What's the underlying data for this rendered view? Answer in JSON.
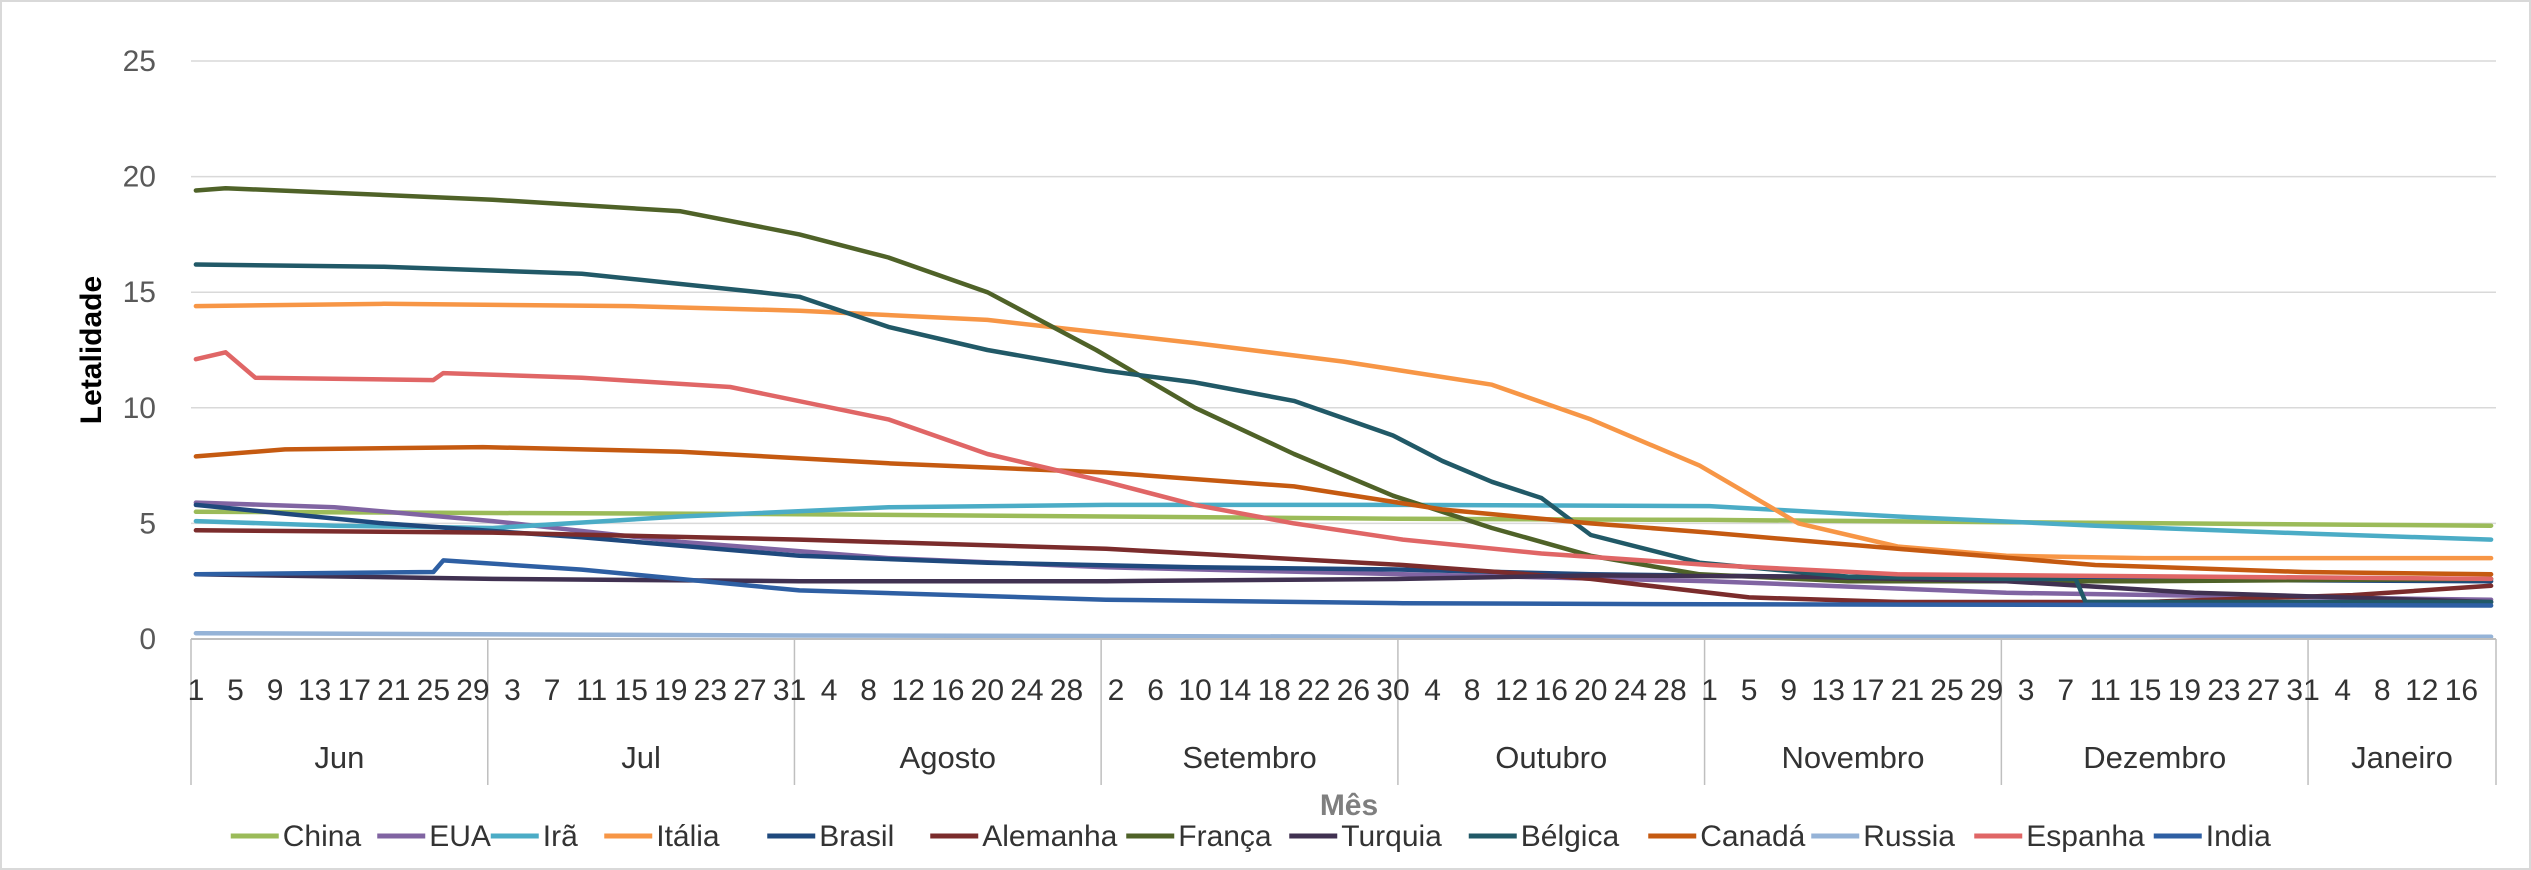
{
  "chart_data": {
    "type": "line",
    "title": "",
    "xlabel": "Mês",
    "ylabel": "Letalidade",
    "ylim": [
      0,
      25
    ],
    "yticks": [
      "0",
      "5",
      "10",
      "15",
      "20",
      "25"
    ],
    "grid": true,
    "legend_position": "bottom",
    "months": [
      {
        "name": "Jun",
        "days": 30
      },
      {
        "name": "Jul",
        "days": 31
      },
      {
        "name": "Agosto",
        "days": 31
      },
      {
        "name": "Setembro",
        "days": 30
      },
      {
        "name": "Outubro",
        "days": 31
      },
      {
        "name": "Novembro",
        "days": 30
      },
      {
        "name": "Dezembro",
        "days": 31
      },
      {
        "name": "Janeiro",
        "days": 19
      }
    ],
    "day_tick_labels": [
      [
        "1",
        "5",
        "9",
        "13",
        "17",
        "21",
        "25",
        "29"
      ],
      [
        "3",
        "7",
        "11",
        "15",
        "19",
        "23",
        "27",
        "31"
      ],
      [
        "4",
        "8",
        "12",
        "16",
        "20",
        "24",
        "28"
      ],
      [
        "2",
        "6",
        "10",
        "14",
        "18",
        "22",
        "26",
        "30"
      ],
      [
        "4",
        "8",
        "12",
        "16",
        "20",
        "24",
        "28"
      ],
      [
        "1",
        "5",
        "9",
        "13",
        "17",
        "21",
        "25",
        "29"
      ],
      [
        "3",
        "7",
        "11",
        "15",
        "19",
        "23",
        "27",
        "31"
      ],
      [
        "4",
        "8",
        "12",
        "16"
      ]
    ],
    "series": [
      {
        "name": "China",
        "color": "#9BBB59",
        "points": [
          [
            "2020-06-01",
            5.5
          ],
          [
            "2020-07-01",
            5.45
          ],
          [
            "2020-08-01",
            5.4
          ],
          [
            "2020-09-01",
            5.3
          ],
          [
            "2020-10-01",
            5.2
          ],
          [
            "2020-11-01",
            5.15
          ],
          [
            "2020-12-01",
            5.05
          ],
          [
            "2021-01-19",
            4.9
          ]
        ]
      },
      {
        "name": "EUA",
        "color": "#8064A2",
        "points": [
          [
            "2020-06-01",
            5.9
          ],
          [
            "2020-06-15",
            5.7
          ],
          [
            "2020-07-01",
            5.1
          ],
          [
            "2020-07-20",
            4.2
          ],
          [
            "2020-08-10",
            3.5
          ],
          [
            "2020-09-01",
            3.1
          ],
          [
            "2020-10-01",
            2.8
          ],
          [
            "2020-11-01",
            2.5
          ],
          [
            "2020-12-01",
            2.0
          ],
          [
            "2021-01-01",
            1.8
          ],
          [
            "2021-01-19",
            1.7
          ]
        ]
      },
      {
        "name": "Irã",
        "color": "#4BACC6",
        "points": [
          [
            "2020-06-01",
            5.1
          ],
          [
            "2020-06-15",
            4.9
          ],
          [
            "2020-07-01",
            4.8
          ],
          [
            "2020-07-20",
            5.3
          ],
          [
            "2020-08-10",
            5.7
          ],
          [
            "2020-09-01",
            5.8
          ],
          [
            "2020-10-01",
            5.8
          ],
          [
            "2020-11-01",
            5.75
          ],
          [
            "2020-11-20",
            5.3
          ],
          [
            "2020-12-10",
            4.9
          ],
          [
            "2021-01-01",
            4.55
          ],
          [
            "2021-01-19",
            4.3
          ]
        ]
      },
      {
        "name": "Itália",
        "color": "#F79646",
        "points": [
          [
            "2020-06-01",
            14.4
          ],
          [
            "2020-06-20",
            14.5
          ],
          [
            "2020-07-15",
            14.4
          ],
          [
            "2020-08-01",
            14.2
          ],
          [
            "2020-08-20",
            13.8
          ],
          [
            "2020-09-10",
            12.8
          ],
          [
            "2020-09-25",
            12.0
          ],
          [
            "2020-10-10",
            11.0
          ],
          [
            "2020-10-20",
            9.5
          ],
          [
            "2020-10-31",
            7.5
          ],
          [
            "2020-11-10",
            5.0
          ],
          [
            "2020-11-20",
            4.0
          ],
          [
            "2020-12-01",
            3.6
          ],
          [
            "2020-12-15",
            3.5
          ],
          [
            "2021-01-19",
            3.5
          ]
        ]
      },
      {
        "name": "Brasil",
        "color": "#1F497D",
        "points": [
          [
            "2020-06-01",
            5.8
          ],
          [
            "2020-06-20",
            5.0
          ],
          [
            "2020-07-10",
            4.4
          ],
          [
            "2020-08-01",
            3.6
          ],
          [
            "2020-08-20",
            3.3
          ],
          [
            "2020-09-10",
            3.1
          ],
          [
            "2020-10-01",
            3.0
          ],
          [
            "2020-10-20",
            2.8
          ],
          [
            "2020-11-10",
            2.7
          ],
          [
            "2020-12-01",
            2.6
          ],
          [
            "2021-01-19",
            2.5
          ]
        ]
      },
      {
        "name": "Alemanha",
        "color": "#7B2C2C",
        "points": [
          [
            "2020-06-01",
            4.7
          ],
          [
            "2020-07-01",
            4.6
          ],
          [
            "2020-08-01",
            4.3
          ],
          [
            "2020-09-01",
            3.9
          ],
          [
            "2020-10-01",
            3.2
          ],
          [
            "2020-10-20",
            2.6
          ],
          [
            "2020-11-05",
            1.8
          ],
          [
            "2020-11-20",
            1.6
          ],
          [
            "2020-12-15",
            1.6
          ],
          [
            "2021-01-05",
            1.9
          ],
          [
            "2021-01-19",
            2.3
          ]
        ]
      },
      {
        "name": "França",
        "color": "#4F6228",
        "points": [
          [
            "2020-06-01",
            19.4
          ],
          [
            "2020-06-04",
            19.5
          ],
          [
            "2020-07-01",
            19.0
          ],
          [
            "2020-07-20",
            18.5
          ],
          [
            "2020-08-01",
            17.5
          ],
          [
            "2020-08-10",
            16.5
          ],
          [
            "2020-08-20",
            15.0
          ],
          [
            "2020-08-31",
            12.5
          ],
          [
            "2020-09-10",
            10.0
          ],
          [
            "2020-09-20",
            8.0
          ],
          [
            "2020-09-30",
            6.2
          ],
          [
            "2020-10-10",
            4.8
          ],
          [
            "2020-10-20",
            3.6
          ],
          [
            "2020-10-31",
            2.8
          ],
          [
            "2020-11-15",
            2.5
          ],
          [
            "2020-12-15",
            2.5
          ],
          [
            "2021-01-19",
            2.6
          ]
        ]
      },
      {
        "name": "Turquia",
        "color": "#403151",
        "points": [
          [
            "2020-06-01",
            2.8
          ],
          [
            "2020-07-01",
            2.6
          ],
          [
            "2020-08-01",
            2.5
          ],
          [
            "2020-09-01",
            2.5
          ],
          [
            "2020-10-01",
            2.6
          ],
          [
            "2020-10-20",
            2.75
          ],
          [
            "2020-11-10",
            2.7
          ],
          [
            "2020-12-01",
            2.5
          ],
          [
            "2020-12-20",
            2.0
          ],
          [
            "2021-01-19",
            1.6
          ]
        ]
      },
      {
        "name": "Bélgica",
        "color": "#215967",
        "points": [
          [
            "2020-06-01",
            16.2
          ],
          [
            "2020-06-20",
            16.1
          ],
          [
            "2020-07-10",
            15.8
          ],
          [
            "2020-07-28",
            15.0
          ],
          [
            "2020-08-01",
            14.8
          ],
          [
            "2020-08-10",
            13.5
          ],
          [
            "2020-08-20",
            12.5
          ],
          [
            "2020-09-01",
            11.6
          ],
          [
            "2020-09-10",
            11.1
          ],
          [
            "2020-09-20",
            10.3
          ],
          [
            "2020-09-30",
            8.8
          ],
          [
            "2020-10-05",
            7.7
          ],
          [
            "2020-10-10",
            6.8
          ],
          [
            "2020-10-15",
            6.1
          ],
          [
            "2020-10-20",
            4.5
          ],
          [
            "2020-10-31",
            3.3
          ],
          [
            "2020-11-15",
            2.7
          ],
          [
            "2020-12-01",
            2.6
          ],
          [
            "2020-12-08",
            2.6
          ],
          [
            "2020-12-09",
            1.6
          ],
          [
            "2021-01-19",
            1.6
          ]
        ]
      },
      {
        "name": "Canadá",
        "color": "#C55A11",
        "points": [
          [
            "2020-06-01",
            7.9
          ],
          [
            "2020-06-10",
            8.2
          ],
          [
            "2020-06-30",
            8.3
          ],
          [
            "2020-07-20",
            8.1
          ],
          [
            "2020-08-10",
            7.6
          ],
          [
            "2020-09-01",
            7.2
          ],
          [
            "2020-09-20",
            6.6
          ],
          [
            "2020-10-05",
            5.6
          ],
          [
            "2020-10-20",
            5.0
          ],
          [
            "2020-11-01",
            4.6
          ],
          [
            "2020-11-20",
            3.9
          ],
          [
            "2020-12-10",
            3.2
          ],
          [
            "2020-12-31",
            2.9
          ],
          [
            "2021-01-19",
            2.8
          ]
        ]
      },
      {
        "name": "Russia",
        "color": "#95B3D7",
        "points": [
          [
            "2020-06-01",
            0.25
          ],
          [
            "2020-08-01",
            0.15
          ],
          [
            "2020-10-01",
            0.1
          ],
          [
            "2021-01-19",
            0.1
          ]
        ]
      },
      {
        "name": "Espanha",
        "color": "#E06666",
        "points": [
          [
            "2020-06-01",
            12.1
          ],
          [
            "2020-06-04",
            12.4
          ],
          [
            "2020-06-07",
            11.3
          ],
          [
            "2020-06-25",
            11.2
          ],
          [
            "2020-06-26",
            11.5
          ],
          [
            "2020-07-10",
            11.3
          ],
          [
            "2020-07-25",
            10.9
          ],
          [
            "2020-08-10",
            9.5
          ],
          [
            "2020-08-20",
            8.0
          ],
          [
            "2020-09-01",
            6.8
          ],
          [
            "2020-09-10",
            5.8
          ],
          [
            "2020-09-20",
            5.0
          ],
          [
            "2020-10-01",
            4.3
          ],
          [
            "2020-10-15",
            3.7
          ],
          [
            "2020-11-01",
            3.2
          ],
          [
            "2020-11-20",
            2.8
          ],
          [
            "2020-12-20",
            2.7
          ],
          [
            "2021-01-19",
            2.6
          ]
        ]
      },
      {
        "name": "India",
        "color": "#2E5FA3",
        "points": [
          [
            "2020-06-01",
            2.8
          ],
          [
            "2020-06-25",
            2.9
          ],
          [
            "2020-06-26",
            3.4
          ],
          [
            "2020-07-10",
            3.0
          ],
          [
            "2020-08-01",
            2.1
          ],
          [
            "2020-09-01",
            1.7
          ],
          [
            "2020-10-01",
            1.55
          ],
          [
            "2020-11-01",
            1.5
          ],
          [
            "2021-01-19",
            1.45
          ]
        ]
      }
    ]
  }
}
